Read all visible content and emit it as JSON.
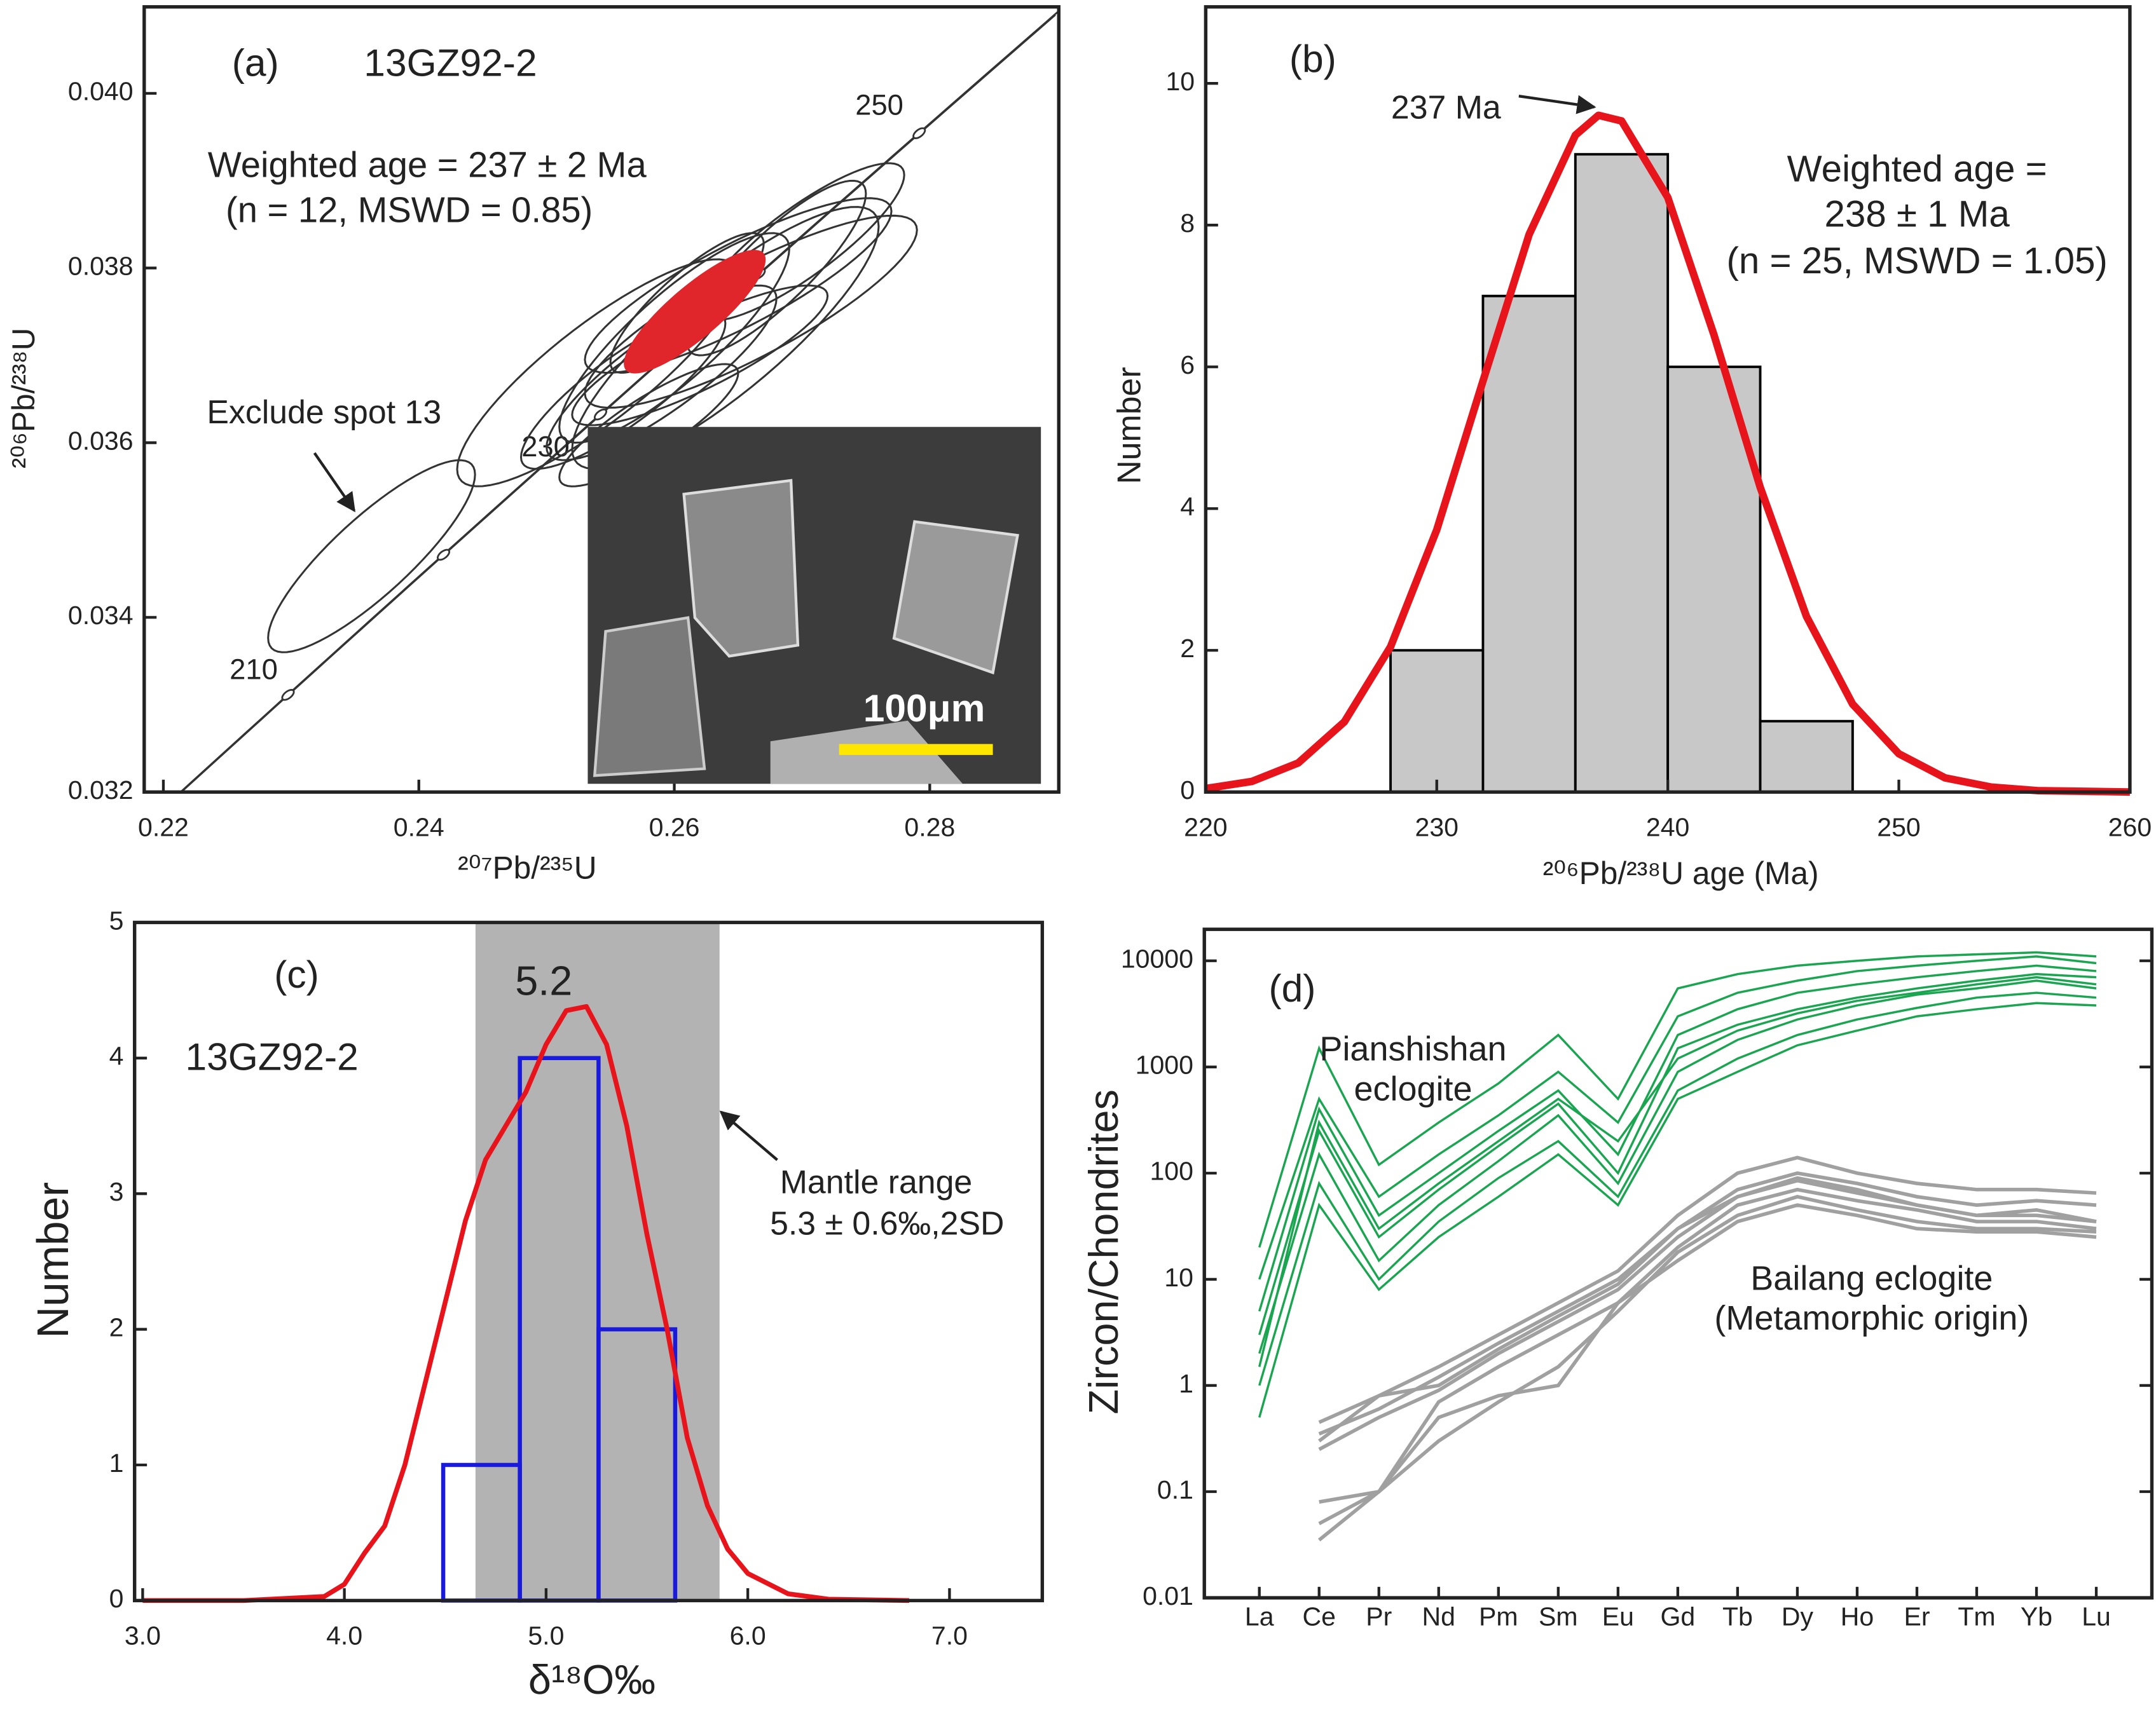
{
  "chart_data": [
    {
      "type": "concordia",
      "panel_label": "(a)",
      "sample": "13GZ92-2",
      "annotations": [
        "Weighted age = 237 ± 2 Ma",
        "(n = 12, MSWD = 0.85)",
        "Exclude spot 13"
      ],
      "x_label": "²⁰⁷Pb/²³⁵U",
      "y_label": "²⁰⁶Pb/²³⁸U",
      "xlim": [
        0.2185,
        0.2901
      ],
      "ylim": [
        0.032,
        0.04099
      ],
      "xticks": [
        0.22,
        0.24,
        0.26,
        0.28
      ],
      "yticks": [
        0.032,
        0.034,
        0.036,
        {
          "value": 0.04,
          "label": "0.040"
        },
        0.038
      ],
      "age_ticks": [
        210,
        220,
        230,
        240,
        250
      ],
      "age_labels": [
        210,
        230,
        250
      ],
      "series": [
        {
          "x": [
            0.265,
            0.26,
            0.256,
            0.268,
            0.262,
            0.258,
            0.27,
            0.254,
            0.266,
            0.261,
            0.264,
            0.259
          ],
          "values": [
            0.0378,
            0.0372,
            0.0366,
            0.038,
            0.037,
            0.0362,
            0.0383,
            0.0368,
            0.0375,
            0.0376,
            0.0372,
            0.0368
          ],
          "x_err": [
            0.012,
            0.009,
            0.008,
            0.007,
            0.01,
            0.007,
            0.008,
            0.011,
            0.013,
            0.006,
            0.012,
            0.009
          ],
          "y_err": [
            0.001,
            0.0012,
            0.0009,
            0.001,
            0.0008,
            0.0007,
            0.0009,
            0.0013,
            0.0011,
            0.0008,
            0.0015,
            0.001
          ],
          "color": "#333333"
        },
        {
          "x": [
            0.2363
          ],
          "values": [
            0.0347
          ],
          "x_err": [
            0.0081
          ],
          "y_err": [
            0.0011
          ],
          "color": "#333333"
        }
      ],
      "weighted_mean": {
        "x": 0.2616,
        "y": 0.0375,
        "x_err": 0.0055,
        "y_err": 0.0007,
        "color": "#e0262b"
      },
      "inset_scale": "100μm"
    },
    {
      "type": "histogram",
      "panel_label": "(b)",
      "annotations": [
        "237 Ma",
        "Weighted age =",
        "238 ± 1 Ma",
        "(n = 25, MSWD = 1.05)"
      ],
      "x_label": "²⁰⁶Pb/²³⁸U age (Ma)",
      "y_label": "Number",
      "xlim": [
        220,
        260
      ],
      "ylim": [
        0,
        11.08
      ],
      "xticks": [
        220,
        230,
        240,
        250,
        260
      ],
      "yticks": [
        0,
        2,
        4,
        6,
        8,
        10
      ],
      "bins": [
        228,
        232,
        236,
        240,
        244,
        248
      ],
      "values": [
        2,
        7,
        9,
        6,
        1
      ],
      "color": "#c8c8c8",
      "edge_color": "#000000",
      "curve": {
        "color": "#e8141c",
        "x": [
          220,
          222,
          224,
          226,
          228,
          230,
          232,
          234,
          236,
          237,
          238,
          240,
          242,
          244,
          246,
          248,
          250,
          252,
          254,
          256,
          258,
          260
        ],
        "values": [
          0.05,
          0.15,
          0.41,
          0.99,
          2.05,
          3.7,
          5.8,
          7.87,
          9.27,
          9.55,
          9.47,
          8.39,
          6.45,
          4.3,
          2.48,
          1.24,
          0.54,
          0.2,
          0.07,
          0.02,
          0.01,
          0
        ]
      }
    },
    {
      "type": "histogram",
      "panel_label": "(c)",
      "sample": "13GZ92-2",
      "annotations": [
        "5.2",
        "Mantle range",
        "5.3 ± 0.6‰,2SD"
      ],
      "x_label": "δ¹⁸O‰",
      "y_label": "Number",
      "xlim": [
        2.96,
        7.46
      ],
      "ylim": [
        0,
        5
      ],
      "xticks": [
        {
          "value": 3,
          "label": "3.0"
        },
        {
          "value": 4,
          "label": "4.0"
        },
        {
          "value": 5,
          "label": "5.0"
        },
        {
          "value": 6,
          "label": "6.0"
        },
        {
          "value": 7,
          "label": "7.0"
        }
      ],
      "yticks": [
        0,
        1,
        2,
        3,
        4,
        5
      ],
      "band": [
        4.65,
        5.86
      ],
      "band_color": "#b3b3b3",
      "bins": [
        4.49,
        4.87,
        5.26,
        5.64
      ],
      "values": [
        1,
        4,
        2
      ],
      "color": "none",
      "edge_color": "#1a1adc",
      "curve": {
        "color": "#e8141c",
        "x": [
          3.0,
          3.5,
          3.9,
          4.0,
          4.1,
          4.2,
          4.3,
          4.4,
          4.5,
          4.6,
          4.7,
          4.8,
          4.9,
          5.0,
          5.1,
          5.2,
          5.3,
          5.4,
          5.5,
          5.6,
          5.7,
          5.8,
          5.9,
          6.0,
          6.2,
          6.4,
          6.8
        ],
        "values": [
          0,
          0,
          0.03,
          0.12,
          0.35,
          0.55,
          1.0,
          1.6,
          2.2,
          2.8,
          3.25,
          3.5,
          3.75,
          4.1,
          4.35,
          4.38,
          4.1,
          3.5,
          2.7,
          2.0,
          1.2,
          0.7,
          0.38,
          0.2,
          0.05,
          0.01,
          0
        ]
      }
    },
    {
      "type": "line",
      "panel_label": "(d)",
      "annotations": [
        "Pianshishan",
        "eclogite",
        "Bailang eclogite",
        "(Metamorphic origin)"
      ],
      "y_label": "Zircon/Chondrites",
      "log_y": true,
      "ylim": [
        0.01,
        19800
      ],
      "yticks": [
        0.01,
        0.1,
        1,
        10,
        100,
        1000,
        10000
      ],
      "categories": [
        "La",
        "Ce",
        "Pr",
        "Nd",
        "Pm",
        "Sm",
        "Eu",
        "Gd",
        "Tb",
        "Dy",
        "Ho",
        "Er",
        "Tm",
        "Yb",
        "Lu"
      ],
      "series": [
        {
          "color": "#1aa550",
          "values": [
            20,
            1500,
            120,
            300,
            700,
            2000,
            500,
            5500,
            7500,
            9000,
            10000,
            11000,
            11500,
            12000,
            11000
          ]
        },
        {
          "color": "#1aa550",
          "values": [
            10,
            500,
            60,
            150,
            350,
            900,
            300,
            3000,
            5000,
            6500,
            8000,
            9000,
            10000,
            11000,
            9500
          ]
        },
        {
          "color": "#1aa550",
          "values": [
            5,
            400,
            40,
            100,
            250,
            600,
            150,
            2000,
            3500,
            5000,
            6000,
            7000,
            8000,
            9000,
            8000
          ]
        },
        {
          "color": "#1aa550",
          "values": [
            3,
            250,
            25,
            70,
            180,
            450,
            100,
            1500,
            2500,
            3500,
            4500,
            5500,
            6500,
            7500,
            7000
          ]
        },
        {
          "color": "#1aa550",
          "values": [
            2,
            150,
            15,
            50,
            130,
            350,
            80,
            900,
            1800,
            2800,
            3800,
            4800,
            5500,
            6500,
            5500
          ]
        },
        {
          "color": "#1aa550",
          "values": [
            1,
            80,
            10,
            35,
            90,
            200,
            60,
            600,
            1200,
            2000,
            2800,
            3600,
            4500,
            5000,
            4500
          ]
        },
        {
          "color": "#1aa550",
          "values": [
            0.5,
            50,
            8,
            25,
            60,
            150,
            50,
            500,
            900,
            1600,
            2200,
            3000,
            3500,
            4000,
            3800
          ]
        },
        {
          "color": "#1aa550",
          "values": [
            1.5,
            300,
            30,
            80,
            200,
            500,
            200,
            1200,
            2200,
            3200,
            4200,
            5000,
            6000,
            7000,
            6000
          ]
        },
        {
          "color": "#a0a0a0",
          "values": [
            null,
            0.45,
            0.8,
            1.5,
            3,
            6,
            12,
            40,
            100,
            140,
            100,
            80,
            70,
            70,
            65
          ]
        },
        {
          "color": "#a0a0a0",
          "values": [
            null,
            0.35,
            0.6,
            1.2,
            2.5,
            5,
            10,
            30,
            70,
            100,
            80,
            60,
            50,
            55,
            50
          ]
        },
        {
          "color": "#a0a0a0",
          "values": [
            null,
            0.25,
            0.5,
            0.9,
            2,
            4,
            8,
            25,
            60,
            90,
            70,
            50,
            40,
            40,
            35
          ]
        },
        {
          "color": "#a0a0a0",
          "values": [
            null,
            0.08,
            0.1,
            0.7,
            1.5,
            3,
            6,
            20,
            50,
            70,
            55,
            45,
            35,
            35,
            30
          ]
        },
        {
          "color": "#a0a0a0",
          "values": [
            null,
            0.05,
            0.1,
            0.3,
            0.7,
            1.5,
            5,
            18,
            40,
            60,
            45,
            35,
            30,
            30,
            28
          ]
        },
        {
          "color": "#a0a0a0",
          "values": [
            null,
            0.035,
            0.1,
            0.5,
            0.8,
            1.0,
            6,
            15,
            35,
            50,
            40,
            30,
            28,
            28,
            25
          ]
        },
        {
          "color": "#a0a0a0",
          "values": [
            null,
            0.3,
            0.8,
            1.0,
            2.2,
            4.5,
            9,
            30,
            60,
            85,
            65,
            50,
            40,
            45,
            35
          ]
        }
      ]
    }
  ]
}
